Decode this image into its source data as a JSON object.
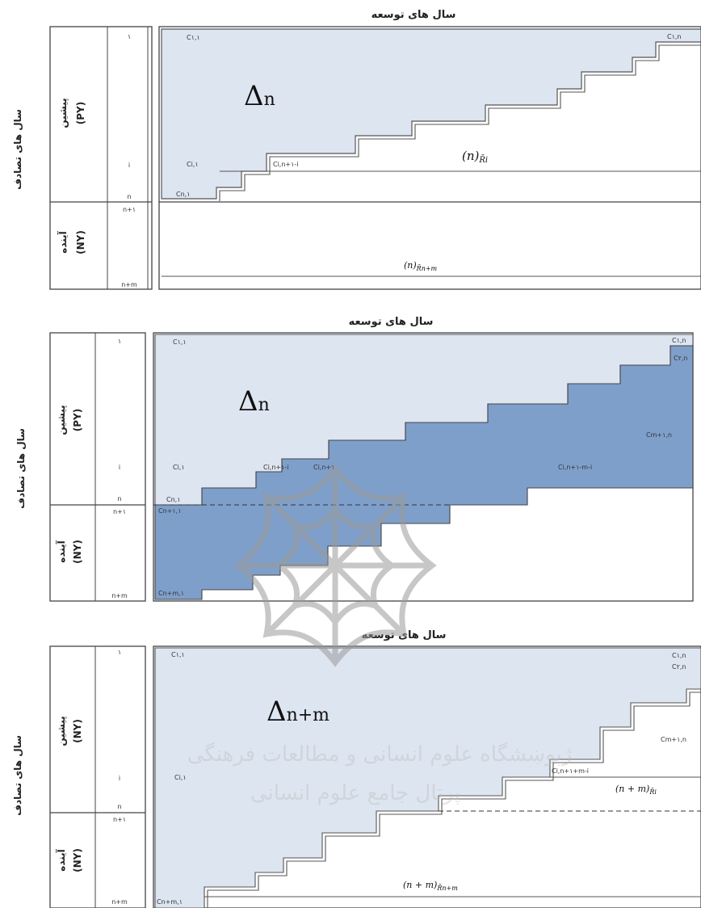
{
  "panels": [
    {
      "heading": "سال های توسعه",
      "accident_axis": "سال های تصادف",
      "past_label": "پیشین",
      "past_code": "(PY)",
      "future_label": "آینده",
      "future_code": "(NY)",
      "rows_past": [
        "۱",
        "i",
        "n"
      ],
      "rows_future": [
        "n+۱",
        "n+m"
      ],
      "cells": [
        "C۱,۱",
        "C۱,n",
        "Ci,۱",
        "Ci,n+۱-i",
        "Cn,۱"
      ],
      "delta": "Δ",
      "delta_sub": "n",
      "reserve_main": "(n)",
      "reserve_sub": "R̄i",
      "reserve_future_main": "(n)",
      "reserve_future_sub": "R̄n+m"
    },
    {
      "heading": "سال های توسعه",
      "accident_axis": "سال های تصادف",
      "past_label": "پیشین",
      "past_code": "(PY)",
      "future_label": "آینده",
      "future_code": "(NY)",
      "rows_past": [
        "۱",
        "i",
        "n"
      ],
      "rows_future": [
        "n+۱",
        "n+m"
      ],
      "cells": [
        "C۱,۱",
        "C۱,n",
        "C۲,n",
        "Cm+۱,n",
        "Ci,۱",
        "Ci,n+۱-i",
        "Ci,n+۱-m-i",
        "Cn,۱",
        "Cn+۱,۱",
        "Cn+m,۱",
        "Ci,n+۱"
      ],
      "delta": "Δ",
      "delta_sub": "n"
    },
    {
      "heading": "سال های توسعه",
      "accident_axis": "سال های تصادف",
      "past_label": "پیشین",
      "past_code": "(NY)",
      "future_label": "آینده",
      "future_code": "(NY)",
      "rows_past": [
        "۱",
        "i",
        "n"
      ],
      "rows_future": [
        "n+۱",
        "n+m"
      ],
      "cells": [
        "C۱,۱",
        "C۱,n",
        "C۲,n",
        "Cm+۱,n",
        "Ci,۱",
        "Ci,n+۱+m-i",
        "Cn+m,۱"
      ],
      "delta": "Δ",
      "delta_sub": "n+m",
      "reserve_main": "(n + m)",
      "reserve_sub": "R̄i",
      "reserve_future_main": "(n + m)",
      "reserve_future_sub": "R̄n+m"
    }
  ],
  "watermark": {
    "line1": "ژپوښشگاه علوم انسانی و مطالعات فرهنگی",
    "line2": "پرتال جامع علوم انسانی"
  },
  "colors": {
    "light_fill": "#dde5f1",
    "dark_fill": "#7f9fcb",
    "line": "#444444"
  }
}
